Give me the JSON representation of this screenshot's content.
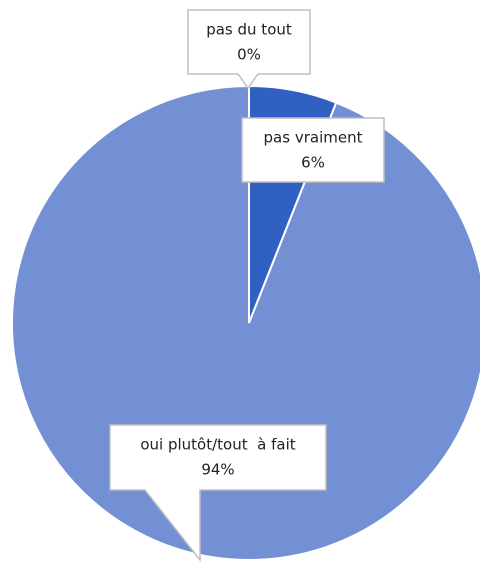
{
  "chart_data": {
    "type": "pie",
    "categories": [
      "pas du tout",
      "pas vraiment",
      "oui plutôt/tout  à fait"
    ],
    "values": [
      0,
      6,
      94
    ],
    "value_labels": [
      "0%",
      "6%",
      "94%"
    ],
    "colors": [
      "#2f5cbf",
      "#3060c2",
      "#7490d4"
    ]
  }
}
